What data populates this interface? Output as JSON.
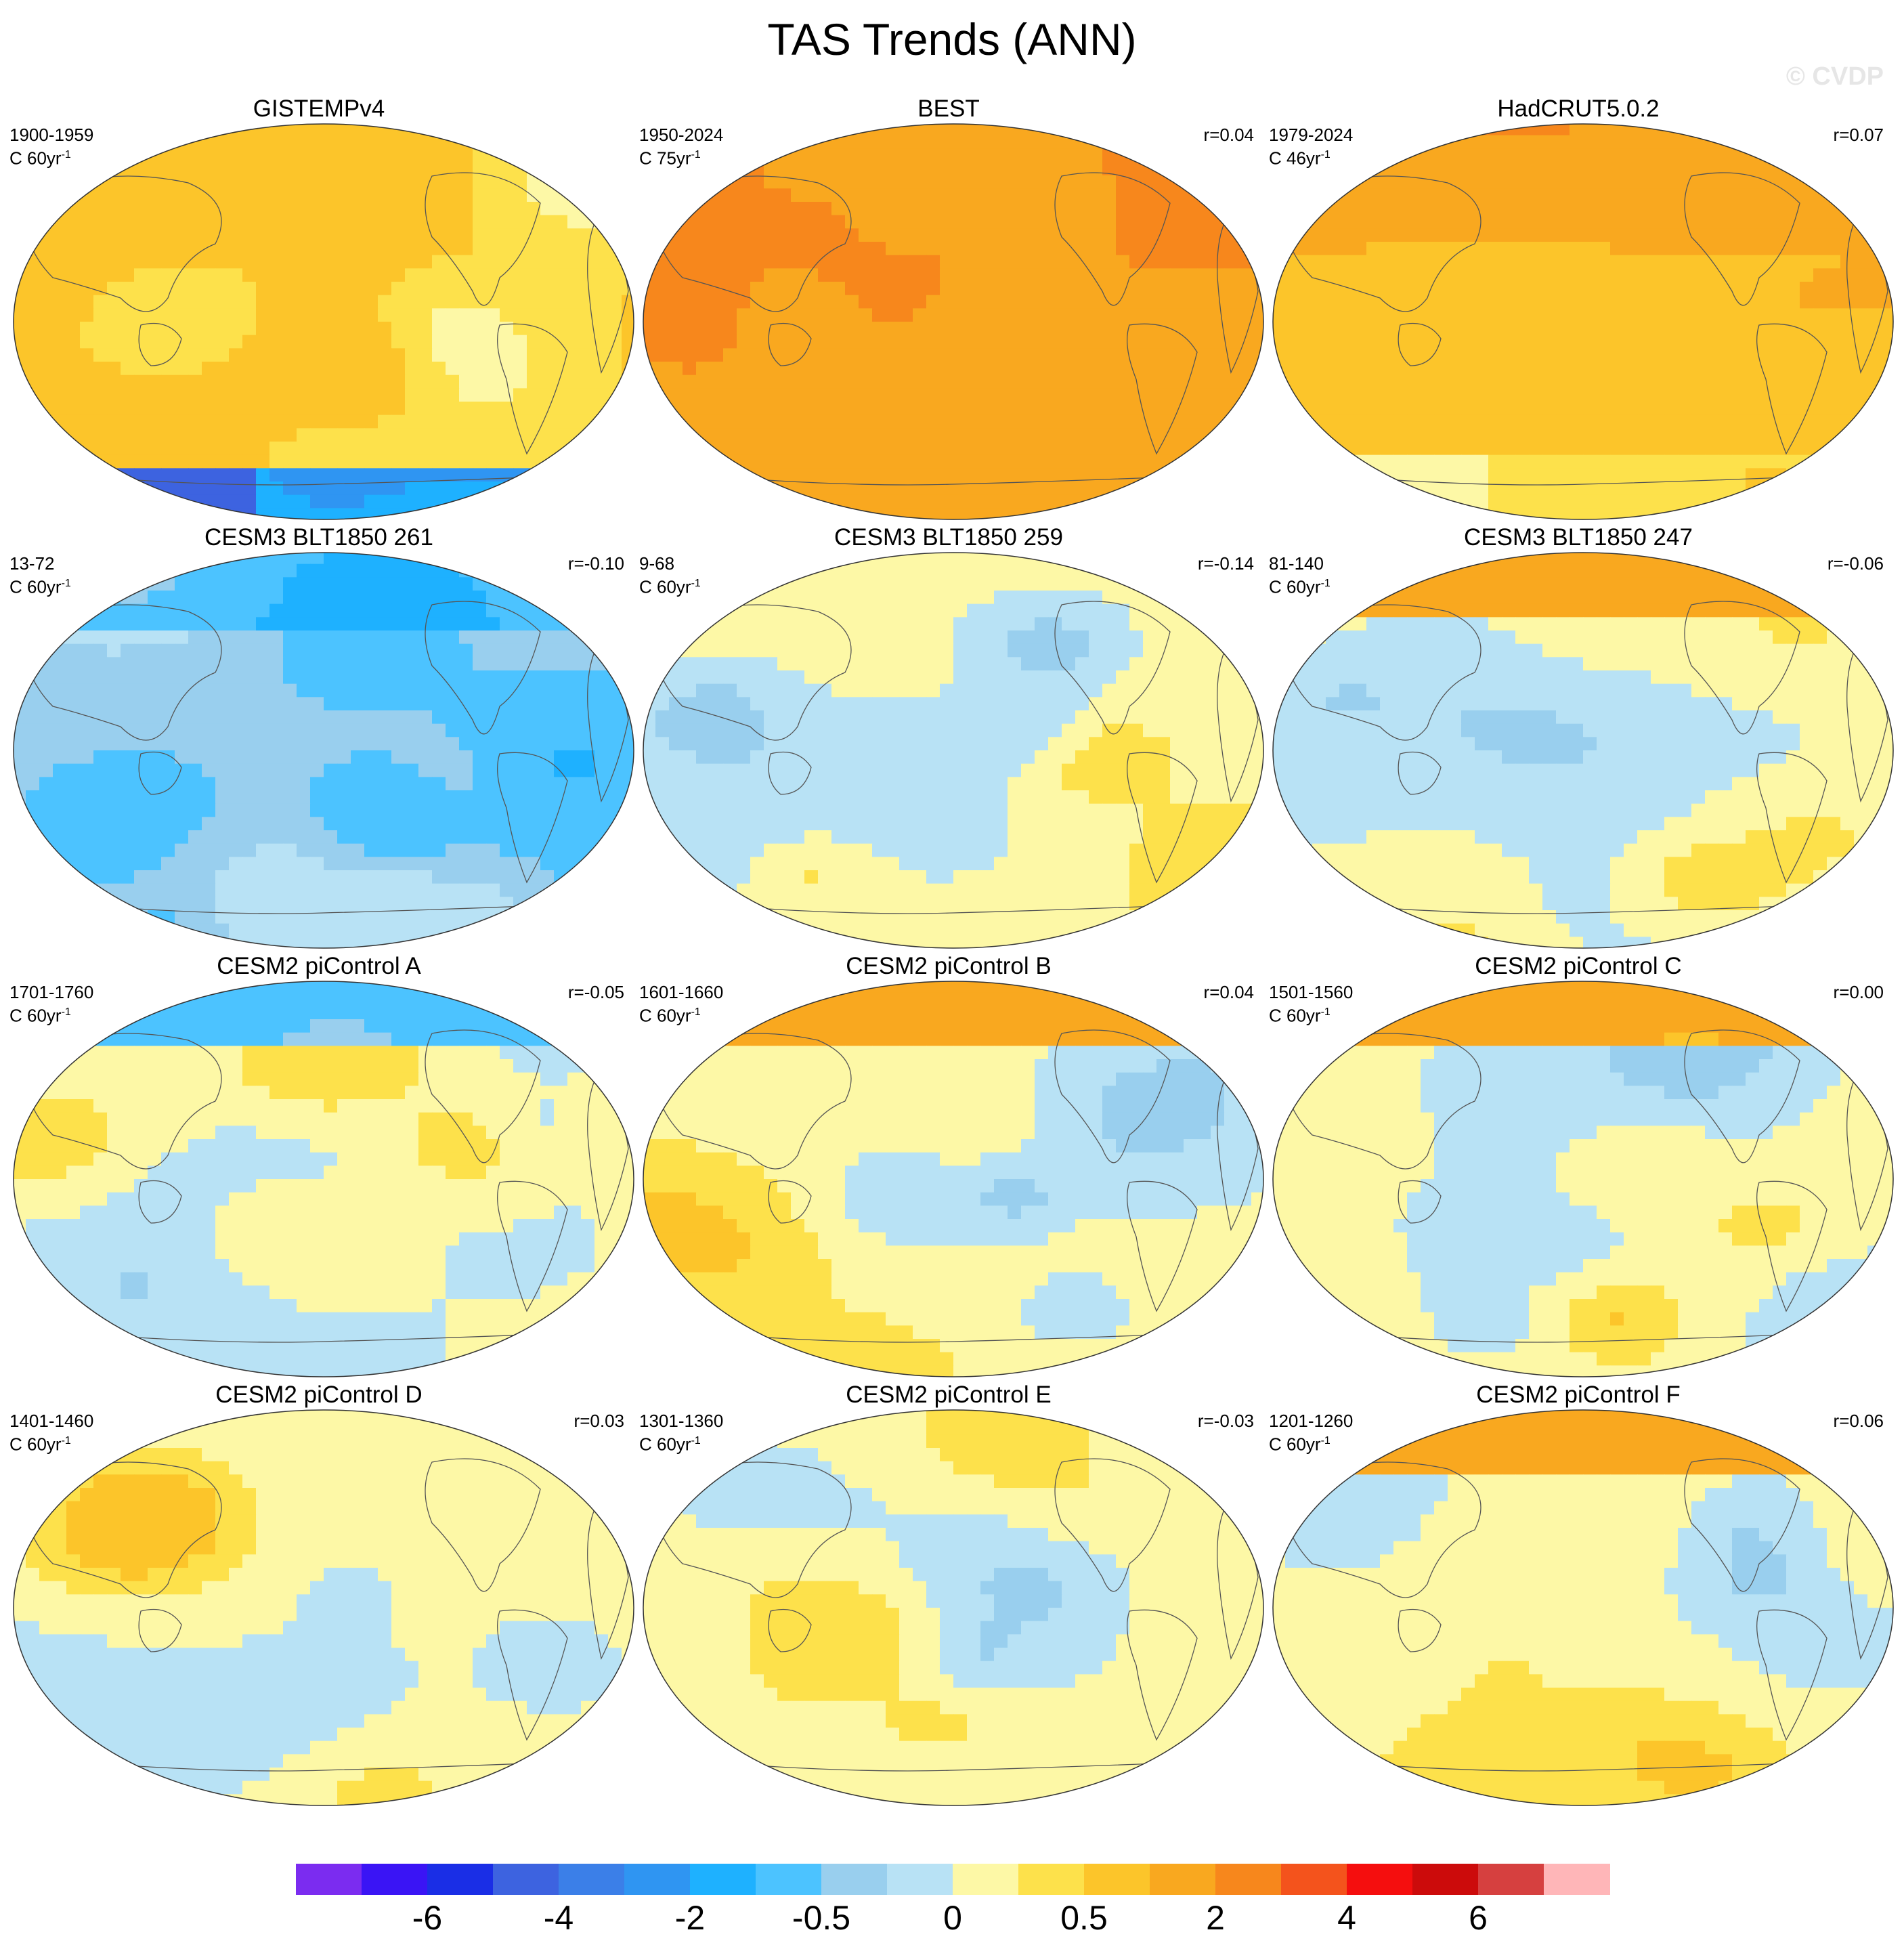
{
  "title": "TAS Trends (ANN)",
  "watermark": "© CVDP",
  "chart_data": {
    "type": "heatmap",
    "projection": "Robinson, Pacific-centered global maps",
    "variable": "TAS annual trend",
    "panels": [
      {
        "title": "GISTEMPv4",
        "period": "1900-1959",
        "units_base": "C 60yr",
        "units_exp": "-1",
        "r": "",
        "dominant": 0.5,
        "pattern": "obs_early"
      },
      {
        "title": "BEST",
        "period": "1950-2024",
        "units_base": "C 75yr",
        "units_exp": "-1",
        "r": "r=0.04",
        "dominant": 2,
        "pattern": "obs_warm"
      },
      {
        "title": "HadCRUT5.0.2",
        "period": "1979-2024",
        "units_base": "C 46yr",
        "units_exp": "-1",
        "r": "r=0.07",
        "dominant": 1,
        "pattern": "obs_recent"
      },
      {
        "title": "CESM3 BLT1850 261",
        "period": "13-72",
        "units_base": "C 60yr",
        "units_exp": "-1",
        "r": "r=-0.10",
        "dominant": -0.5,
        "pattern": "cool"
      },
      {
        "title": "CESM3 BLT1850 259",
        "period": "9-68",
        "units_base": "C 60yr",
        "units_exp": "-1",
        "r": "r=-0.14",
        "dominant": 0,
        "pattern": "mixed"
      },
      {
        "title": "CESM3 BLT1850 247",
        "period": "81-140",
        "units_base": "C 60yr",
        "units_exp": "-1",
        "r": "r=-0.06",
        "dominant": 0,
        "pattern": "mixed_arctic_warm"
      },
      {
        "title": "CESM2 piControl A",
        "period": "1701-1760",
        "units_base": "C 60yr",
        "units_exp": "-1",
        "r": "r=-0.05",
        "dominant": 0,
        "pattern": "mixed_arctic_cool"
      },
      {
        "title": "CESM2 piControl B",
        "period": "1601-1660",
        "units_base": "C 60yr",
        "units_exp": "-1",
        "r": "r=0.04",
        "dominant": 0,
        "pattern": "mixed_arctic_warm"
      },
      {
        "title": "CESM2 piControl C",
        "period": "1501-1560",
        "units_base": "C 60yr",
        "units_exp": "-1",
        "r": "r=0.00",
        "dominant": 0,
        "pattern": "mixed_arctic_warm"
      },
      {
        "title": "CESM2 piControl D",
        "period": "1401-1460",
        "units_base": "C 60yr",
        "units_exp": "-1",
        "r": "r=0.03",
        "dominant": 0,
        "pattern": "mixed"
      },
      {
        "title": "CESM2 piControl E",
        "period": "1301-1360",
        "units_base": "C 60yr",
        "units_exp": "-1",
        "r": "r=-0.03",
        "dominant": 0,
        "pattern": "mixed"
      },
      {
        "title": "CESM2 piControl F",
        "period": "1201-1260",
        "units_base": "C 60yr",
        "units_exp": "-1",
        "r": "r=0.06",
        "dominant": 0,
        "pattern": "mixed_arctic_warm"
      }
    ],
    "colorbar": {
      "colors": [
        "#7b2cf0",
        "#3a14f5",
        "#1a2ee6",
        "#3d63e0",
        "#3b7fe8",
        "#2f95f2",
        "#1eb1ff",
        "#4cc3ff",
        "#99cfee",
        "#b8e2f5",
        "#fdf8a6",
        "#fde14b",
        "#fcc52a",
        "#f9a81f",
        "#f7871c",
        "#f4531c",
        "#f50e0e",
        "#cc0b0b",
        "#d6403f",
        "#ffb6b8"
      ],
      "tick_labels": [
        "-6",
        "-4",
        "-2",
        "-0.5",
        "0",
        "0.5",
        "2",
        "4",
        "6"
      ],
      "tick_boundaries": [
        2,
        4,
        6,
        8,
        10,
        12,
        14,
        16,
        18
      ]
    }
  }
}
